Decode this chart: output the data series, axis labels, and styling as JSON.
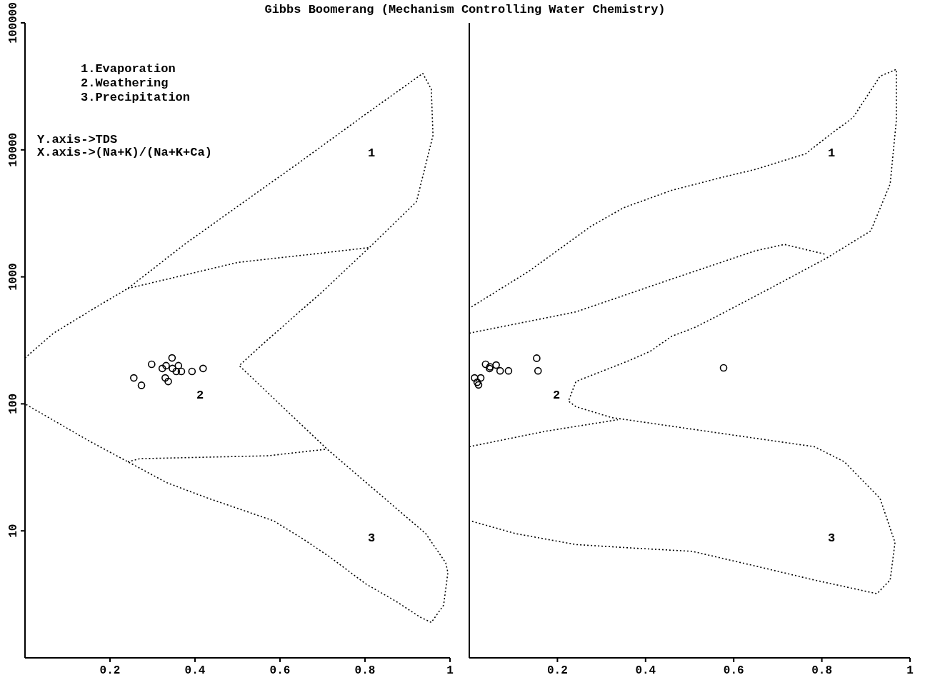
{
  "chart_data": [
    {
      "type": "scatter",
      "title": "Gibbs Boomerang (Mechanism Controlling Water Chemistry)",
      "xlim": [
        0,
        1
      ],
      "xticks": [
        0.2,
        0.4,
        0.6,
        0.8,
        1
      ],
      "ylim": [
        1,
        100000
      ],
      "yticks": [
        10,
        100,
        1000,
        10000,
        100000
      ],
      "log": "y",
      "marker": "circle",
      "annotations": [
        "1.Evaporation",
        "2.Weathering",
        "3.Precipitation",
        "Y.axis->TDS",
        "X.axis->(Na+K)/(Na+K+Ca)",
        "1",
        "2",
        "3"
      ],
      "series": [
        {
          "type": "line",
          "line_style": "dotted",
          "marker": "none",
          "color": "#000000",
          "x": [
            0,
            0.067,
            0.172,
            0.242,
            0.375,
            0.529,
            0.642,
            0.81,
            0.936,
            0.956,
            0.96,
            0.921,
            0.81,
            0.697,
            0.571,
            0.504,
            0.711,
            0.943,
            0.99,
            0.995,
            0.985,
            0.956,
            0.929,
            0.872,
            0.803,
            0.718,
            0.655,
            0.585,
            0.501,
            0.432,
            0.333,
            0.242,
            0.151,
            0
          ],
          "values": [
            230,
            360,
            590,
            810,
            1800,
            4200,
            7800,
            20000,
            40000,
            30000,
            13000,
            3900,
            1700,
            750,
            320,
            200,
            44,
            9.5,
            5.6,
            4.7,
            2.6,
            1.9,
            2.1,
            2.8,
            3.8,
            6.2,
            8.6,
            12,
            15,
            18,
            24,
            35,
            51,
            100
          ]
        },
        {
          "type": "line",
          "line_style": "dotted",
          "marker": "none",
          "color": "#000000",
          "x": [
            0.242,
            0.501,
            0.669,
            0.81
          ],
          "values": [
            810,
            1300,
            1500,
            1700
          ]
        },
        {
          "type": "line",
          "line_style": "dotted",
          "marker": "none",
          "color": "#000000",
          "x": [
            0.242,
            0.27,
            0.571,
            0.684,
            0.711
          ],
          "values": [
            35,
            37,
            39,
            43,
            44
          ]
        },
        {
          "color": "#000000",
          "x": [
            0.256,
            0.274,
            0.298,
            0.323,
            0.332,
            0.346,
            0.347,
            0.361,
            0.356,
            0.368,
            0.393,
            0.419,
            0.33,
            0.337
          ],
          "values": [
            160,
            140,
            205,
            190,
            200,
            230,
            190,
            200,
            180,
            180,
            180,
            190,
            160,
            150
          ]
        }
      ]
    },
    {
      "type": "scatter",
      "xlim": [
        0,
        1
      ],
      "xticks": [
        0.2,
        0.4,
        0.6,
        0.8,
        1
      ],
      "ylim": [
        1,
        100000
      ],
      "log": "y",
      "marker": "circle",
      "tick_labels": "x",
      "annotations": [
        "1",
        "2",
        "3"
      ],
      "series": [
        {
          "type": "line",
          "line_style": "dotted",
          "marker": "none",
          "color": "#000000",
          "x": [
            0.005,
            0.134,
            0.276,
            0.35,
            0.459,
            0.567,
            0.648,
            0.763,
            0.81,
            0.871,
            0.932,
            0.969,
            0.969,
            0.955,
            0.911,
            0.81,
            0.682,
            0.567,
            0.512,
            0.459,
            0.411,
            0.364,
            0.242,
            0.225,
            0.242,
            0.323,
            0.58,
            0.783,
            0.851,
            0.932,
            0.966,
            0.955,
            0.925,
            0.783,
            0.648,
            0.506,
            0.377,
            0.242,
            0.106,
            0.002
          ],
          "values": [
            580,
            1100,
            2500,
            3500,
            4800,
            6000,
            7000,
            9300,
            12500,
            18000,
            38000,
            43000,
            17000,
            5400,
            2300,
            1400,
            810,
            500,
            400,
            340,
            260,
            220,
            150,
            105,
            95,
            78,
            58,
            46,
            35,
            18,
            8.1,
            4.1,
            3.2,
            4.1,
            5.3,
            6.9,
            7.3,
            7.8,
            9.5,
            12
          ]
        },
        {
          "type": "line",
          "line_style": "dotted",
          "marker": "none",
          "color": "#000000",
          "x": [
            0,
            0.242,
            0.459,
            0.648,
            0.715,
            0.81
          ],
          "values": [
            360,
            530,
            960,
            1600,
            1800,
            1500
          ]
        },
        {
          "type": "line",
          "line_style": "dotted",
          "marker": "none",
          "color": "#000000",
          "x": [
            0,
            0.175,
            0.337
          ],
          "values": [
            46,
            61,
            75
          ]
        },
        {
          "color": "#000000",
          "x": [
            0.012,
            0.026,
            0.018,
            0.021,
            0.037,
            0.047,
            0.061,
            0.07,
            0.089,
            0.153,
            0.156,
            0.577,
            0.046
          ],
          "values": [
            160,
            160,
            148,
            141,
            205,
            196,
            202,
            182,
            182,
            229,
            182,
            192,
            190
          ]
        }
      ]
    }
  ]
}
